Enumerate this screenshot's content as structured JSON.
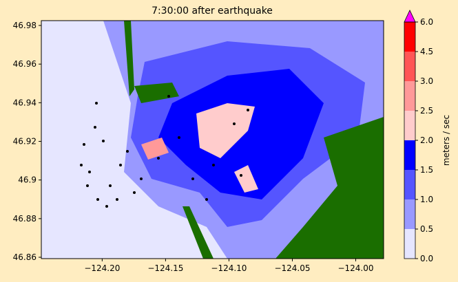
{
  "chart_data": {
    "type": "contourf",
    "title": "7:30:00 after earthquake",
    "xlim": [
      -124.248,
      -123.978
    ],
    "ylim": [
      46.8593,
      46.9825
    ],
    "xticks": [
      {
        "value": -124.2,
        "label": "−124.20"
      },
      {
        "value": -124.15,
        "label": "−124.15"
      },
      {
        "value": -124.1,
        "label": "−124.10"
      },
      {
        "value": -124.05,
        "label": "−124.05"
      },
      {
        "value": -124.0,
        "label": "−124.00"
      }
    ],
    "yticks": [
      46.86,
      46.88,
      46.9,
      46.92,
      46.94,
      46.96,
      46.98
    ],
    "colorbar": {
      "label": "meters / sec",
      "levels": [
        {
          "value": 0,
          "label": "0.0"
        },
        0.5,
        {
          "value": 1,
          "label": "1.0"
        },
        1.5,
        {
          "value": 2,
          "label": "2.0"
        },
        2.5,
        {
          "value": 3,
          "label": "3.0"
        },
        4.5,
        {
          "value": 6,
          "label": "6.0"
        }
      ],
      "colors": [
        "#e6e6ff",
        "#9999ff",
        "#5555ff",
        "#0000ff",
        "#ffcccc",
        "#ff9999",
        "#ff5555",
        "#ff0000"
      ],
      "extend_color": "#ff00ff"
    }
  }
}
